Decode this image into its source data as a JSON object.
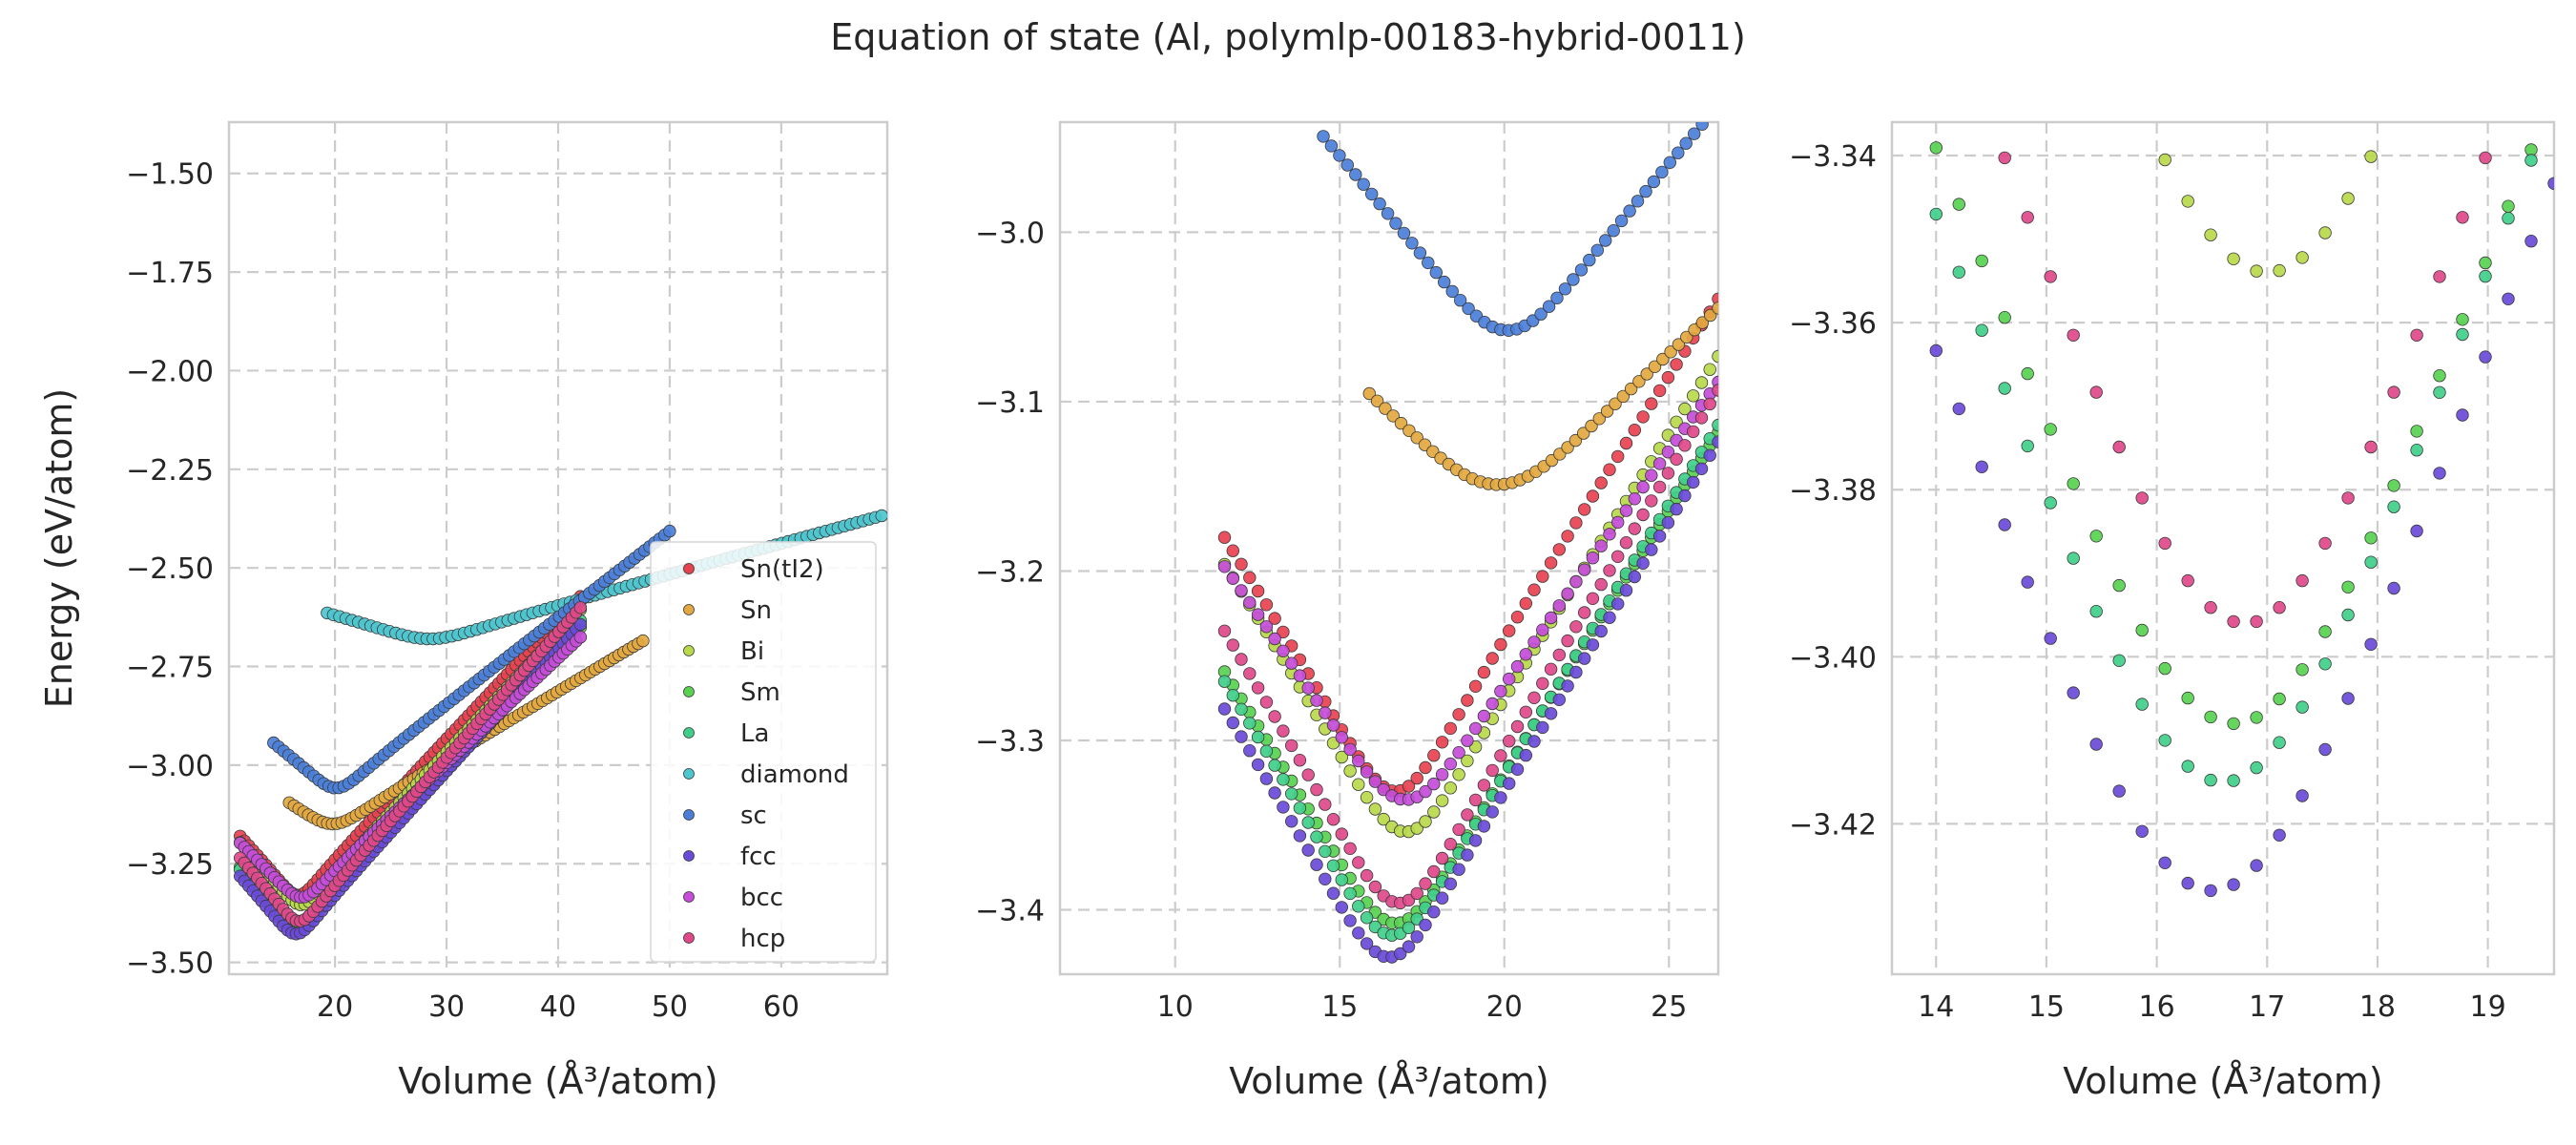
{
  "figure": {
    "title": "Equation of state (Al, polymlp-00183-hybrid-0011)"
  },
  "series_styles": [
    {
      "name": "Sn(tI2)",
      "color": "#e8414f"
    },
    {
      "name": "Sn",
      "color": "#e3a83f"
    },
    {
      "name": "Bi",
      "color": "#b8d94a"
    },
    {
      "name": "Sm",
      "color": "#58d24f"
    },
    {
      "name": "La",
      "color": "#3fcf8a"
    },
    {
      "name": "diamond",
      "color": "#4cc6cf"
    },
    {
      "name": "sc",
      "color": "#4a7fd9"
    },
    {
      "name": "fcc",
      "color": "#6a4ad9"
    },
    {
      "name": "bcc",
      "color": "#c64cd9"
    },
    {
      "name": "hcp",
      "color": "#e0488a"
    }
  ],
  "chart_data": [
    {
      "type": "scatter",
      "panel": "left",
      "xlabel": "Volume (Å³/atom)",
      "ylabel": "Energy (eV/atom)",
      "xlim": [
        10.5,
        69.5
      ],
      "ylim": [
        -3.53,
        -1.37
      ],
      "xticks": [
        20,
        30,
        40,
        50,
        60
      ],
      "yticks": [
        -3.5,
        -3.25,
        -3.0,
        -2.75,
        -2.5,
        -2.25,
        -2.0,
        -1.75,
        -1.5
      ],
      "xtick_labels": [
        "20",
        "30",
        "40",
        "50",
        "60"
      ],
      "ytick_labels": [
        "−3.50",
        "−3.25",
        "−3.00",
        "−2.75",
        "−2.50",
        "−2.25",
        "−2.00",
        "−1.75",
        "−1.50"
      ],
      "grid": true,
      "legend_position": "lower-right",
      "legend": [
        "Sn(tI2)",
        "Sn",
        "Bi",
        "Sm",
        "La",
        "diamond",
        "sc",
        "fcc",
        "bcc",
        "hcp"
      ],
      "series": [
        {
          "name": "Sn(tI2)",
          "model": {
            "v0": 16.7,
            "e0": -3.33,
            "a": 0.02,
            "ea": 0.045,
            "vmin": 11.5,
            "vmax": 42.0,
            "n": 80
          }
        },
        {
          "name": "Sn",
          "model": {
            "v0": 19.8,
            "e0": -3.149,
            "a": 0.0062,
            "ea": 0.0454,
            "vmin": 15.9,
            "vmax": 47.6,
            "n": 75
          }
        },
        {
          "name": "Bi",
          "model": {
            "v0": 17.0,
            "e0": -3.354,
            "a": 0.018,
            "ea": 0.05,
            "vmin": 11.5,
            "vmax": 42.0,
            "n": 80
          }
        },
        {
          "name": "Sm",
          "model": {
            "v0": 16.7,
            "e0": -3.408,
            "a": 0.018,
            "ea": 0.05,
            "vmin": 11.5,
            "vmax": 42.0,
            "n": 80
          }
        },
        {
          "name": "La",
          "model": {
            "v0": 16.6,
            "e0": -3.415,
            "a": 0.019,
            "ea": 0.05,
            "vmin": 11.5,
            "vmax": 42.0,
            "n": 80
          }
        },
        {
          "name": "diamond",
          "model": {
            "v0": 28.5,
            "e0": -2.68,
            "a": 0.002,
            "ea": 0.03,
            "vmin": 19.3,
            "vmax": 69.0,
            "n": 90
          }
        },
        {
          "name": "sc",
          "model": {
            "v0": 20.1,
            "e0": -3.058,
            "a": 0.0105,
            "ea": 0.0454,
            "vmin": 14.5,
            "vmax": 50.0,
            "n": 80
          }
        },
        {
          "name": "fcc",
          "model": {
            "v0": 16.5,
            "e0": -3.428,
            "a": 0.019,
            "ea": 0.05,
            "vmin": 11.5,
            "vmax": 42.0,
            "n": 80
          }
        },
        {
          "name": "bcc",
          "model": {
            "v0": 17.0,
            "e0": -3.335,
            "a": 0.014,
            "ea": 0.05,
            "vmin": 11.5,
            "vmax": 42.0,
            "n": 80
          }
        },
        {
          "name": "hcp",
          "model": {
            "v0": 16.8,
            "e0": -3.396,
            "a": 0.02,
            "ea": 0.05,
            "vmin": 11.5,
            "vmax": 42.0,
            "n": 80
          }
        }
      ]
    },
    {
      "type": "scatter",
      "panel": "middle",
      "xlabel": "Volume (Å³/atom)",
      "ylabel": "",
      "xlim": [
        6.5,
        26.5
      ],
      "ylim": [
        -3.438,
        -2.935
      ],
      "xticks": [
        10,
        15,
        20,
        25
      ],
      "yticks": [
        -3.4,
        -3.3,
        -3.2,
        -3.1,
        -3.0
      ],
      "xtick_labels": [
        "10",
        "15",
        "20",
        "25"
      ],
      "ytick_labels": [
        "−3.4",
        "−3.3",
        "−3.2",
        "−3.1",
        "−3.0"
      ],
      "grid": true,
      "legend_position": "none",
      "series": [
        {
          "name": "Sn(tI2)",
          "model": {
            "v0": 16.7,
            "e0": -3.33,
            "a": 0.02,
            "ea": 0.045,
            "vmin": 11.5,
            "vmax": 26.5,
            "n": 60
          }
        },
        {
          "name": "Sn",
          "model": {
            "v0": 19.8,
            "e0": -3.149,
            "a": 0.0062,
            "ea": 0.0454,
            "vmin": 15.9,
            "vmax": 26.5,
            "n": 45
          }
        },
        {
          "name": "Bi",
          "model": {
            "v0": 17.0,
            "e0": -3.354,
            "a": 0.018,
            "ea": 0.05,
            "vmin": 11.5,
            "vmax": 26.5,
            "n": 60
          }
        },
        {
          "name": "Sm",
          "model": {
            "v0": 16.7,
            "e0": -3.408,
            "a": 0.018,
            "ea": 0.05,
            "vmin": 11.5,
            "vmax": 26.5,
            "n": 60
          }
        },
        {
          "name": "La",
          "model": {
            "v0": 16.6,
            "e0": -3.415,
            "a": 0.019,
            "ea": 0.05,
            "vmin": 11.5,
            "vmax": 26.5,
            "n": 60
          }
        },
        {
          "name": "sc",
          "model": {
            "v0": 20.1,
            "e0": -3.058,
            "a": 0.0105,
            "ea": 0.0454,
            "vmin": 14.5,
            "vmax": 26.5,
            "n": 50
          }
        },
        {
          "name": "fcc",
          "model": {
            "v0": 16.5,
            "e0": -3.428,
            "a": 0.019,
            "ea": 0.05,
            "vmin": 11.5,
            "vmax": 26.5,
            "n": 60
          }
        },
        {
          "name": "bcc",
          "model": {
            "v0": 17.0,
            "e0": -3.335,
            "a": 0.014,
            "ea": 0.05,
            "vmin": 11.5,
            "vmax": 26.5,
            "n": 60
          }
        },
        {
          "name": "hcp",
          "model": {
            "v0": 16.8,
            "e0": -3.396,
            "a": 0.02,
            "ea": 0.05,
            "vmin": 11.5,
            "vmax": 26.5,
            "n": 60
          }
        }
      ]
    },
    {
      "type": "scatter",
      "panel": "right",
      "xlabel": "Volume (Å³/atom)",
      "ylabel": "",
      "xlim": [
        13.6,
        19.6
      ],
      "ylim": [
        -3.438,
        -3.336
      ],
      "xticks": [
        14,
        15,
        16,
        17,
        18,
        19
      ],
      "yticks": [
        -3.42,
        -3.4,
        -3.38,
        -3.36,
        -3.34
      ],
      "xtick_labels": [
        "14",
        "15",
        "16",
        "17",
        "18",
        "19"
      ],
      "ytick_labels": [
        "−3.42",
        "−3.40",
        "−3.38",
        "−3.36",
        "−3.34"
      ],
      "grid": true,
      "legend_position": "none",
      "series": [
        {
          "name": "Bi",
          "model": {
            "v0": 17.0,
            "e0": -3.354,
            "a": 0.018,
            "ea": 0.05,
            "vmin": 14.0,
            "vmax": 19.6,
            "n": 28
          }
        },
        {
          "name": "Sm",
          "model": {
            "v0": 16.7,
            "e0": -3.408,
            "a": 0.018,
            "ea": 0.05,
            "vmin": 14.0,
            "vmax": 19.6,
            "n": 28
          }
        },
        {
          "name": "La",
          "model": {
            "v0": 16.6,
            "e0": -3.415,
            "a": 0.019,
            "ea": 0.05,
            "vmin": 14.0,
            "vmax": 19.6,
            "n": 28
          }
        },
        {
          "name": "sc",
          "model": {
            "v0": 20.1,
            "e0": -3.058,
            "a": 0.0105,
            "ea": 0.0454,
            "vmin": 14.0,
            "vmax": 19.6,
            "n": 28
          }
        },
        {
          "name": "fcc",
          "model": {
            "v0": 16.5,
            "e0": -3.428,
            "a": 0.019,
            "ea": 0.05,
            "vmin": 14.0,
            "vmax": 19.6,
            "n": 28
          }
        },
        {
          "name": "bcc",
          "model": {
            "v0": 17.0,
            "e0": -3.335,
            "a": 0.014,
            "ea": 0.05,
            "vmin": 14.0,
            "vmax": 19.6,
            "n": 28
          }
        },
        {
          "name": "hcp",
          "model": {
            "v0": 16.8,
            "e0": -3.396,
            "a": 0.02,
            "ea": 0.05,
            "vmin": 14.0,
            "vmax": 19.6,
            "n": 28
          }
        }
      ]
    }
  ]
}
